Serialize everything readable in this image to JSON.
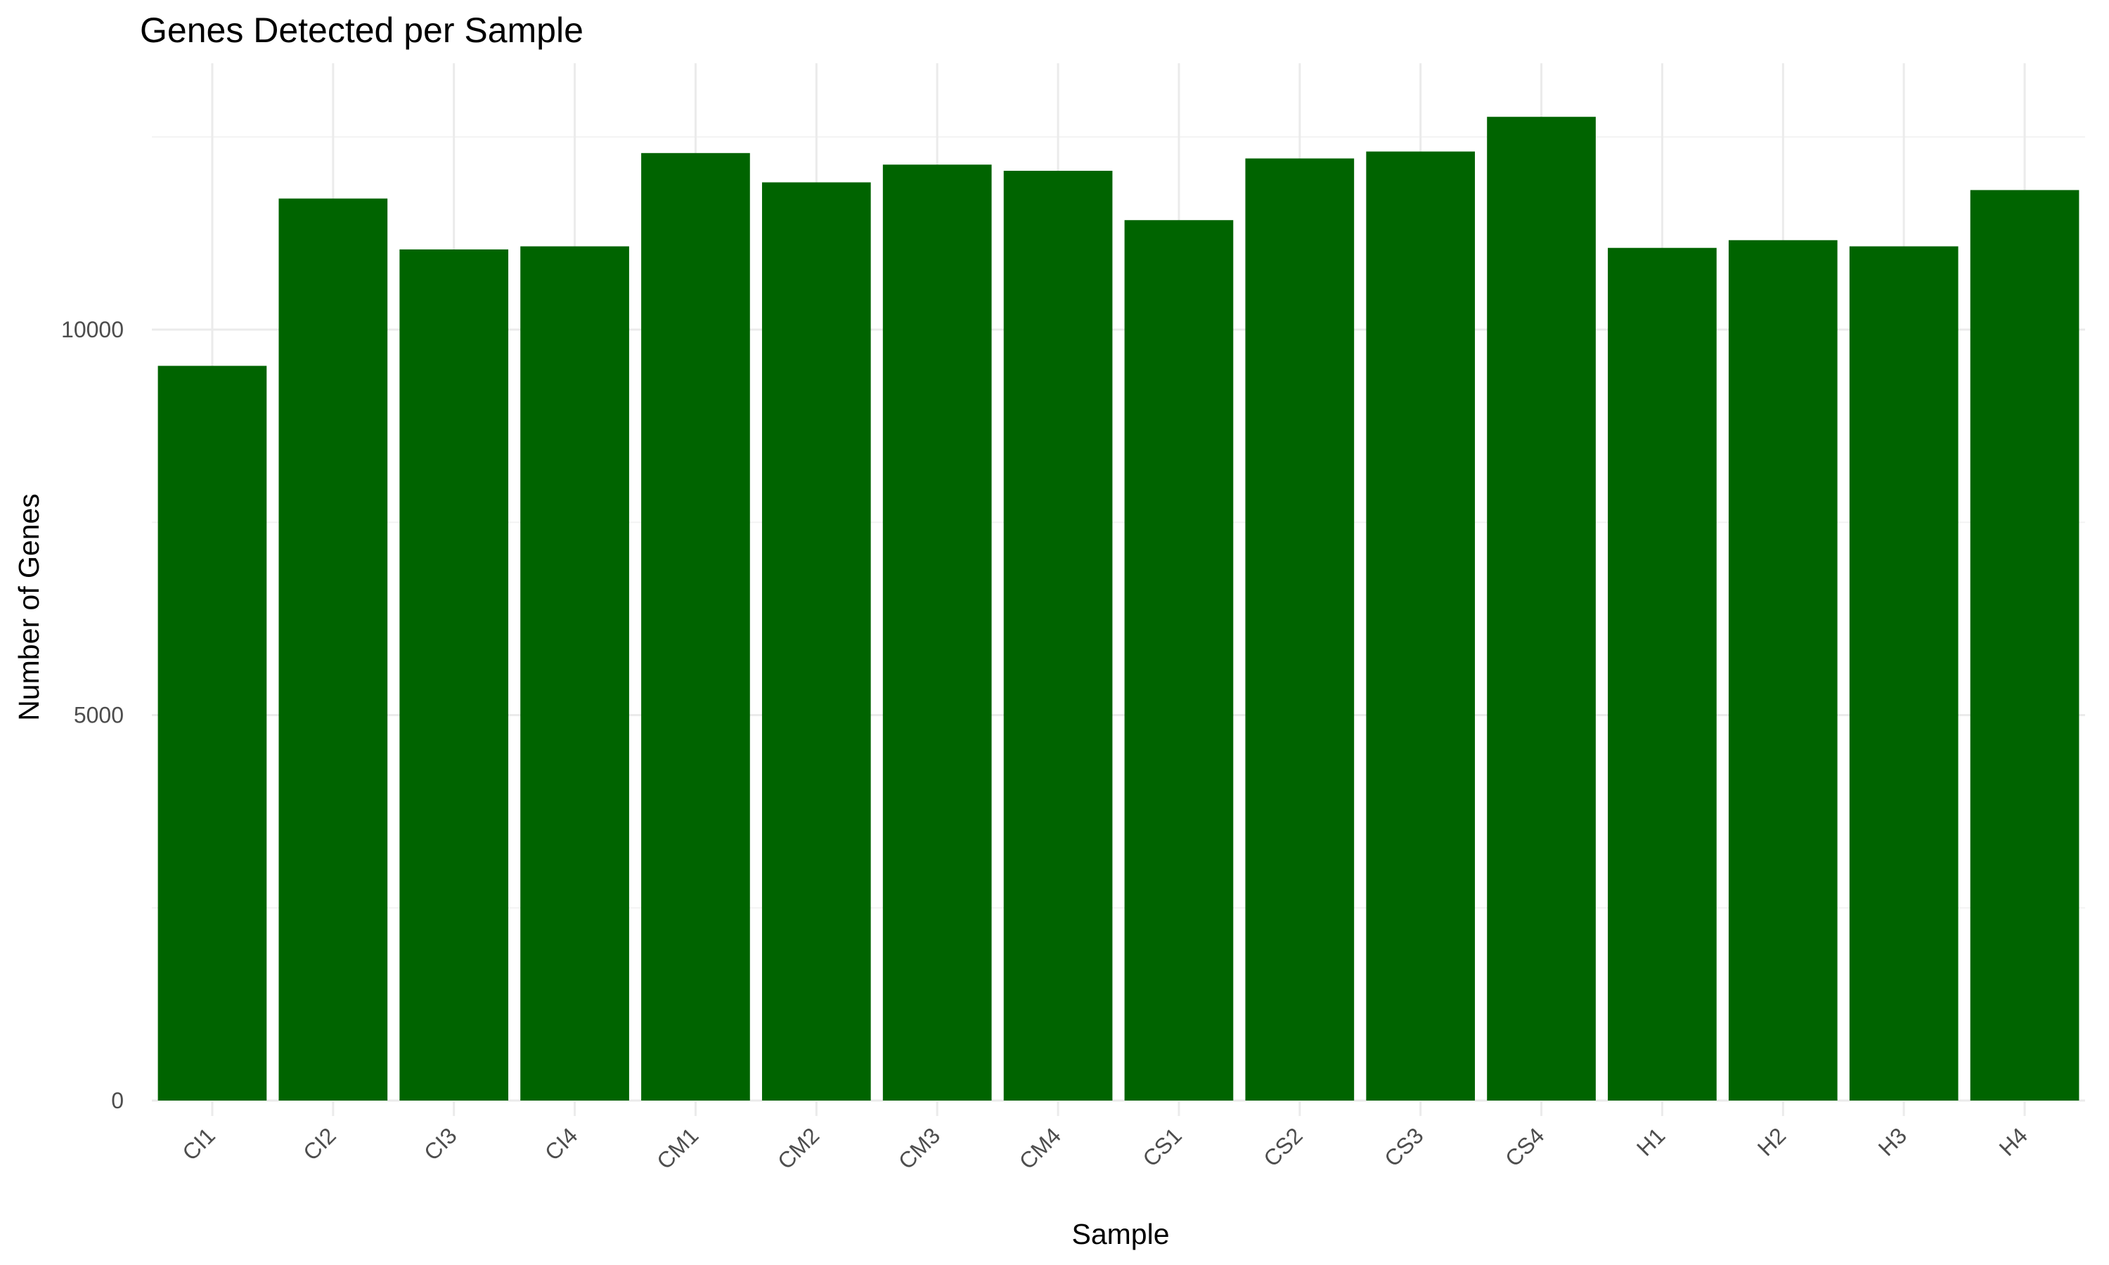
{
  "chart_data": {
    "type": "bar",
    "title": "Genes Detected per Sample",
    "xlabel": "Sample",
    "ylabel": "Number of Genes",
    "categories": [
      "CI1",
      "CI2",
      "CI3",
      "CI4",
      "CM1",
      "CM2",
      "CM3",
      "CM4",
      "CS1",
      "CS2",
      "CS3",
      "CS4",
      "H1",
      "H2",
      "H3",
      "H4"
    ],
    "values": [
      9530,
      11700,
      11040,
      11080,
      12290,
      11910,
      12140,
      12060,
      11420,
      12220,
      12310,
      12760,
      11060,
      11160,
      11080,
      11810
    ],
    "ylim": [
      0,
      13300
    ],
    "yticks": [
      0,
      5000,
      10000
    ],
    "ytick_labels": [
      "0",
      "5000",
      "10000"
    ],
    "bar_color": "#006400",
    "grid": true,
    "legend": "none"
  }
}
